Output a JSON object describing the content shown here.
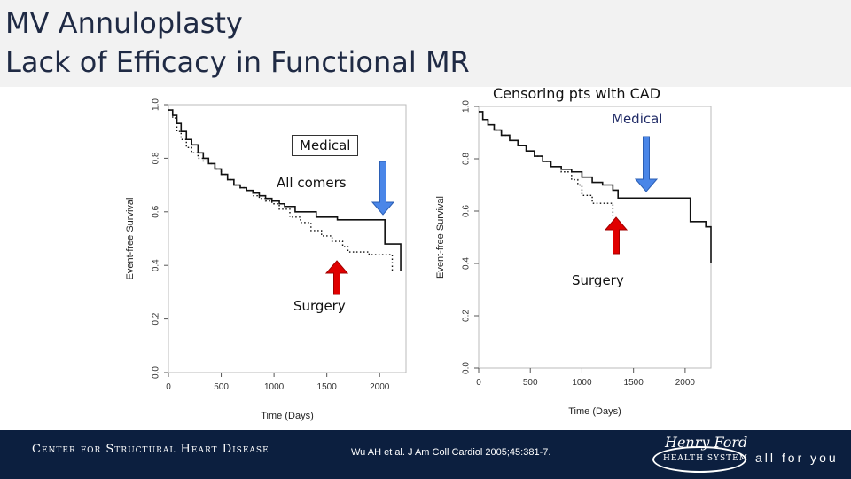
{
  "slide": {
    "title_line1": "MV Annuloplasty",
    "title_line2": "Lack of Efficacy in Functional MR",
    "censoring_note": "Censoring pts with CAD"
  },
  "annotations": {
    "left_medical": "Medical",
    "left_allcomers": "All comers",
    "left_surgery": "Surgery",
    "right_medical": "Medical",
    "right_surgery": "Surgery",
    "arrow_blue": "#4a86e8",
    "arrow_red": "#e00000"
  },
  "footer": {
    "center_name": "Center for Structural Heart Disease",
    "citation": "Wu AH et al. J Am Coll Cardiol 2005;45:381-7.",
    "logo_script": "Henry Ford",
    "logo_sub": "HEALTH SYSTEM",
    "tagline": "all for you"
  },
  "chart_data": [
    {
      "type": "line",
      "step": true,
      "ylabel": "Event-free Survival",
      "xlabel": "Time (Days)",
      "ylim": [
        0,
        1
      ],
      "xlim": [
        0,
        2250
      ],
      "yticks": [
        "0.0",
        "0.2",
        "0.4",
        "0.6",
        "0.8",
        "1.0"
      ],
      "xticks": [
        "0",
        "500",
        "1000",
        "1500",
        "2000"
      ],
      "series": [
        {
          "name": "Medical",
          "style": "solid",
          "x": [
            0,
            40,
            80,
            120,
            170,
            220,
            280,
            330,
            380,
            440,
            500,
            560,
            620,
            680,
            740,
            800,
            860,
            920,
            980,
            1050,
            1100,
            1150,
            1200,
            1300,
            1400,
            1500,
            1600,
            1700,
            1800,
            1900,
            2000,
            2050,
            2200
          ],
          "y": [
            0.98,
            0.96,
            0.93,
            0.9,
            0.87,
            0.85,
            0.82,
            0.8,
            0.78,
            0.76,
            0.74,
            0.72,
            0.7,
            0.69,
            0.68,
            0.67,
            0.66,
            0.65,
            0.64,
            0.63,
            0.62,
            0.62,
            0.6,
            0.6,
            0.58,
            0.58,
            0.57,
            0.57,
            0.57,
            0.57,
            0.57,
            0.48,
            0.38
          ]
        },
        {
          "name": "Surgery",
          "style": "dotted",
          "x": [
            0,
            40,
            80,
            120,
            170,
            220,
            280,
            330,
            380,
            440,
            500,
            560,
            620,
            680,
            740,
            800,
            860,
            920,
            980,
            1050,
            1150,
            1250,
            1350,
            1450,
            1550,
            1650,
            1700,
            1800,
            1900,
            2000,
            2100,
            2120
          ],
          "y": [
            0.98,
            0.95,
            0.9,
            0.87,
            0.84,
            0.82,
            0.8,
            0.79,
            0.78,
            0.76,
            0.74,
            0.72,
            0.7,
            0.69,
            0.68,
            0.66,
            0.65,
            0.64,
            0.63,
            0.61,
            0.58,
            0.56,
            0.53,
            0.51,
            0.49,
            0.47,
            0.45,
            0.45,
            0.44,
            0.44,
            0.44,
            0.38
          ]
        }
      ]
    },
    {
      "type": "line",
      "step": true,
      "ylabel": "Event-free Survival",
      "xlabel": "Time (Days)",
      "ylim": [
        0,
        1
      ],
      "xlim": [
        0,
        2250
      ],
      "yticks": [
        "0.0",
        "0.2",
        "0.4",
        "0.6",
        "0.8",
        "1.0"
      ],
      "xticks": [
        "0",
        "500",
        "1000",
        "1500",
        "2000"
      ],
      "series": [
        {
          "name": "Medical",
          "style": "solid",
          "x": [
            0,
            40,
            90,
            150,
            220,
            300,
            380,
            460,
            540,
            620,
            700,
            800,
            900,
            1000,
            1100,
            1200,
            1300,
            1350,
            1500,
            1700,
            1900,
            2000,
            2050,
            2200,
            2250
          ],
          "y": [
            0.98,
            0.95,
            0.93,
            0.91,
            0.89,
            0.87,
            0.85,
            0.83,
            0.81,
            0.79,
            0.77,
            0.76,
            0.75,
            0.73,
            0.71,
            0.7,
            0.68,
            0.65,
            0.65,
            0.65,
            0.65,
            0.65,
            0.56,
            0.54,
            0.4
          ]
        },
        {
          "name": "Surgery",
          "style": "dotted",
          "x": [
            0,
            40,
            90,
            150,
            220,
            300,
            380,
            460,
            540,
            620,
            700,
            800,
            900,
            960,
            1000,
            1100,
            1200,
            1280,
            1300
          ],
          "y": [
            0.98,
            0.95,
            0.93,
            0.91,
            0.89,
            0.87,
            0.85,
            0.83,
            0.81,
            0.79,
            0.77,
            0.75,
            0.72,
            0.7,
            0.66,
            0.63,
            0.63,
            0.63,
            0.58
          ]
        }
      ]
    }
  ]
}
